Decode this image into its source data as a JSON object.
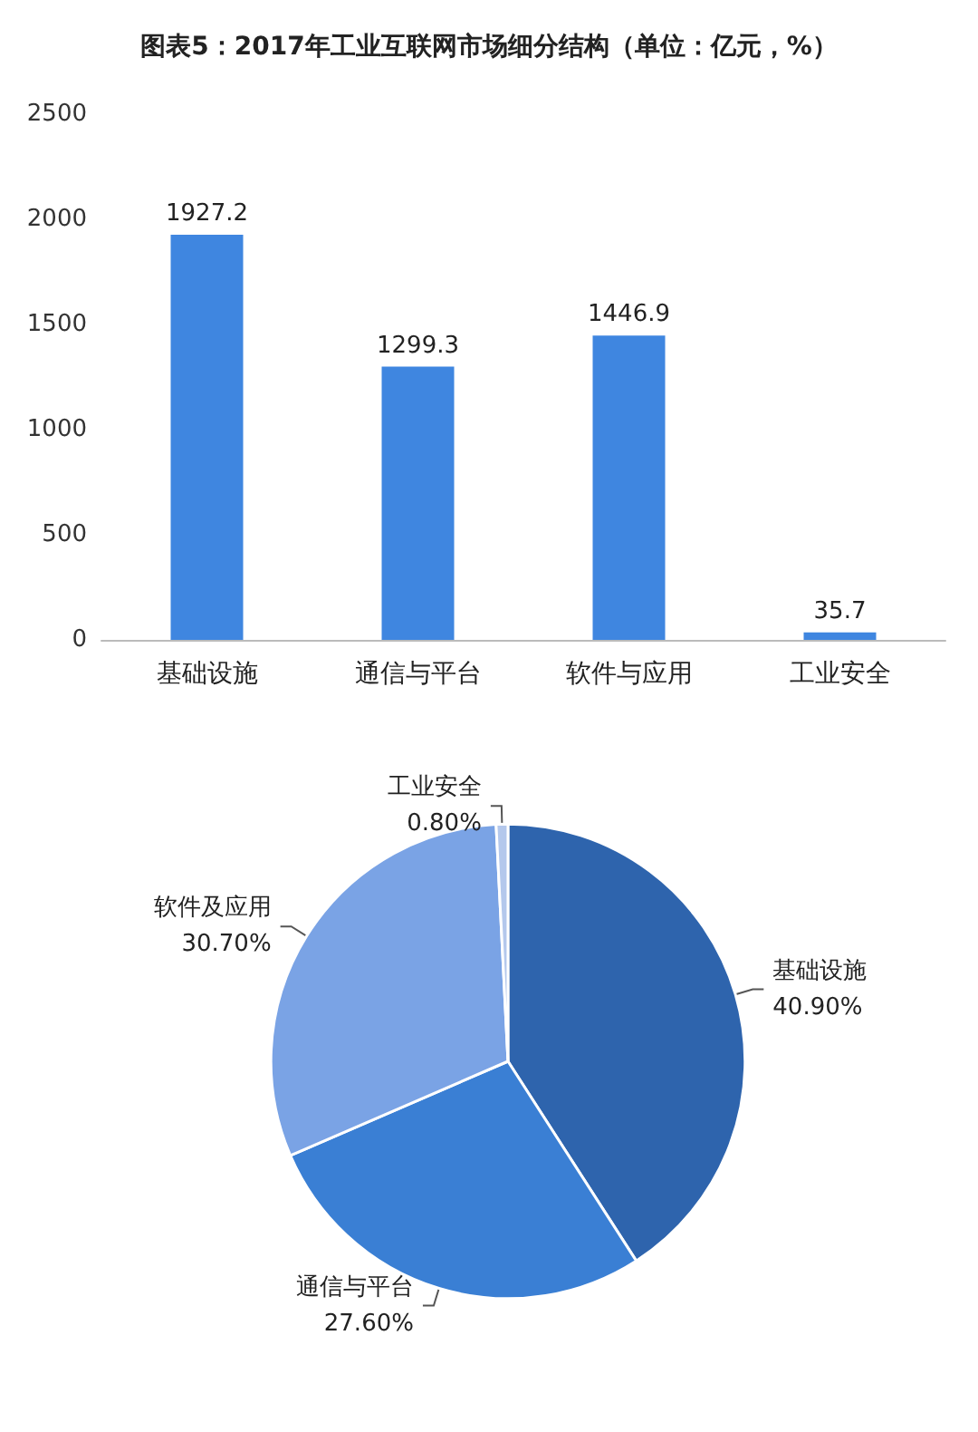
{
  "chart_data": [
    {
      "type": "bar",
      "title": "图表5：2017年工业互联网市场细分结构（单位：亿元，%）",
      "categories": [
        "基础设施",
        "通信与平台",
        "软件与应用",
        "工业安全"
      ],
      "values": [
        1927.2,
        1299.3,
        1446.9,
        35.7
      ],
      "color": "#3f86e0",
      "ylim": [
        0,
        2500
      ],
      "yticks": [
        0,
        500,
        1000,
        1500,
        2000,
        2500
      ],
      "grid": false,
      "legend": false,
      "data_labels": true
    },
    {
      "type": "pie",
      "categories": [
        "基础设施",
        "通信与平台",
        "软件及应用",
        "工业安全"
      ],
      "values": [
        40.9,
        27.6,
        30.7,
        0.8
      ],
      "colors": [
        "#2e64ad",
        "#3a7fd4",
        "#7aa3e5",
        "#b4c8ec"
      ],
      "value_labels": [
        "40.90%",
        "27.60%",
        "30.70%",
        "0.80%"
      ],
      "legend": false
    }
  ]
}
